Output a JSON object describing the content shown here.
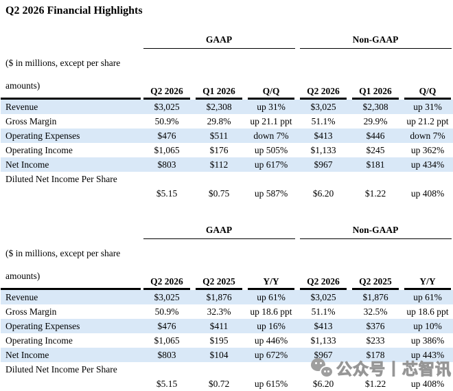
{
  "page": {
    "title": "Q2 2026 Financial Highlights"
  },
  "colors": {
    "row_band": "#d9e8f7",
    "rule": "#000000",
    "watermark_gray": "#9e9e9e"
  },
  "tables": [
    {
      "name": "quarter-over-quarter",
      "note1": "($ in millions, except per share",
      "note2": "amounts)",
      "groups": [
        "GAAP",
        "Non-GAAP"
      ],
      "cols": [
        "Q2 2026",
        "Q1 2026",
        "Q/Q",
        "Q2 2026",
        "Q1 2026",
        "Q/Q"
      ],
      "rows": [
        {
          "label": "Revenue",
          "vals": [
            "$3,025",
            "$2,308",
            "up 31%",
            "$3,025",
            "$2,308",
            "up 31%"
          ]
        },
        {
          "label": "Gross Margin",
          "vals": [
            "50.9%",
            "29.8%",
            "up 21.1 ppt",
            "51.1%",
            "29.9%",
            "up 21.2 ppt"
          ]
        },
        {
          "label": "Operating Expenses",
          "vals": [
            "$476",
            "$511",
            "down 7%",
            "$413",
            "$446",
            "down 7%"
          ]
        },
        {
          "label": "Operating Income",
          "vals": [
            "$1,065",
            "$176",
            "up 505%",
            "$1,133",
            "$245",
            "up 362%"
          ]
        },
        {
          "label": "Net Income",
          "vals": [
            "$803",
            "$112",
            "up 617%",
            "$967",
            "$181",
            "up 434%"
          ]
        }
      ],
      "eps": {
        "label": "Diluted Net Income Per Share",
        "vals": [
          "$5.15",
          "$0.75",
          "up 587%",
          "$6.20",
          "$1.22",
          "up 408%"
        ]
      }
    },
    {
      "name": "year-over-year",
      "note1": "($ in millions, except per share",
      "note2": "amounts)",
      "groups": [
        "GAAP",
        "Non-GAAP"
      ],
      "cols": [
        "Q2 2026",
        "Q2 2025",
        "Y/Y",
        "Q2 2026",
        "Q2 2025",
        "Y/Y"
      ],
      "rows": [
        {
          "label": "Revenue",
          "vals": [
            "$3,025",
            "$1,876",
            "up 61%",
            "$3,025",
            "$1,876",
            "up 61%"
          ]
        },
        {
          "label": "Gross Margin",
          "vals": [
            "50.9%",
            "32.3%",
            "up 18.6 ppt",
            "51.1%",
            "32.5%",
            "up 18.6 ppt"
          ]
        },
        {
          "label": "Operating Expenses",
          "vals": [
            "$476",
            "$411",
            "up 16%",
            "$413",
            "$376",
            "up 10%"
          ]
        },
        {
          "label": "Operating Income",
          "vals": [
            "$1,065",
            "$195",
            "up 446%",
            "$1,133",
            "$233",
            "up 386%"
          ]
        },
        {
          "label": "Net Income",
          "vals": [
            "$803",
            "$104",
            "up 672%",
            "$967",
            "$178",
            "up 443%"
          ]
        }
      ],
      "eps": {
        "label": "Diluted Net Income Per Share",
        "vals": [
          "$5.15",
          "$0.72",
          "up 615%",
          "$6.20",
          "$1.22",
          "up 408%"
        ]
      }
    }
  ],
  "watermark": {
    "icon": "wechat-icon",
    "text": "公众号丨芯智讯"
  }
}
